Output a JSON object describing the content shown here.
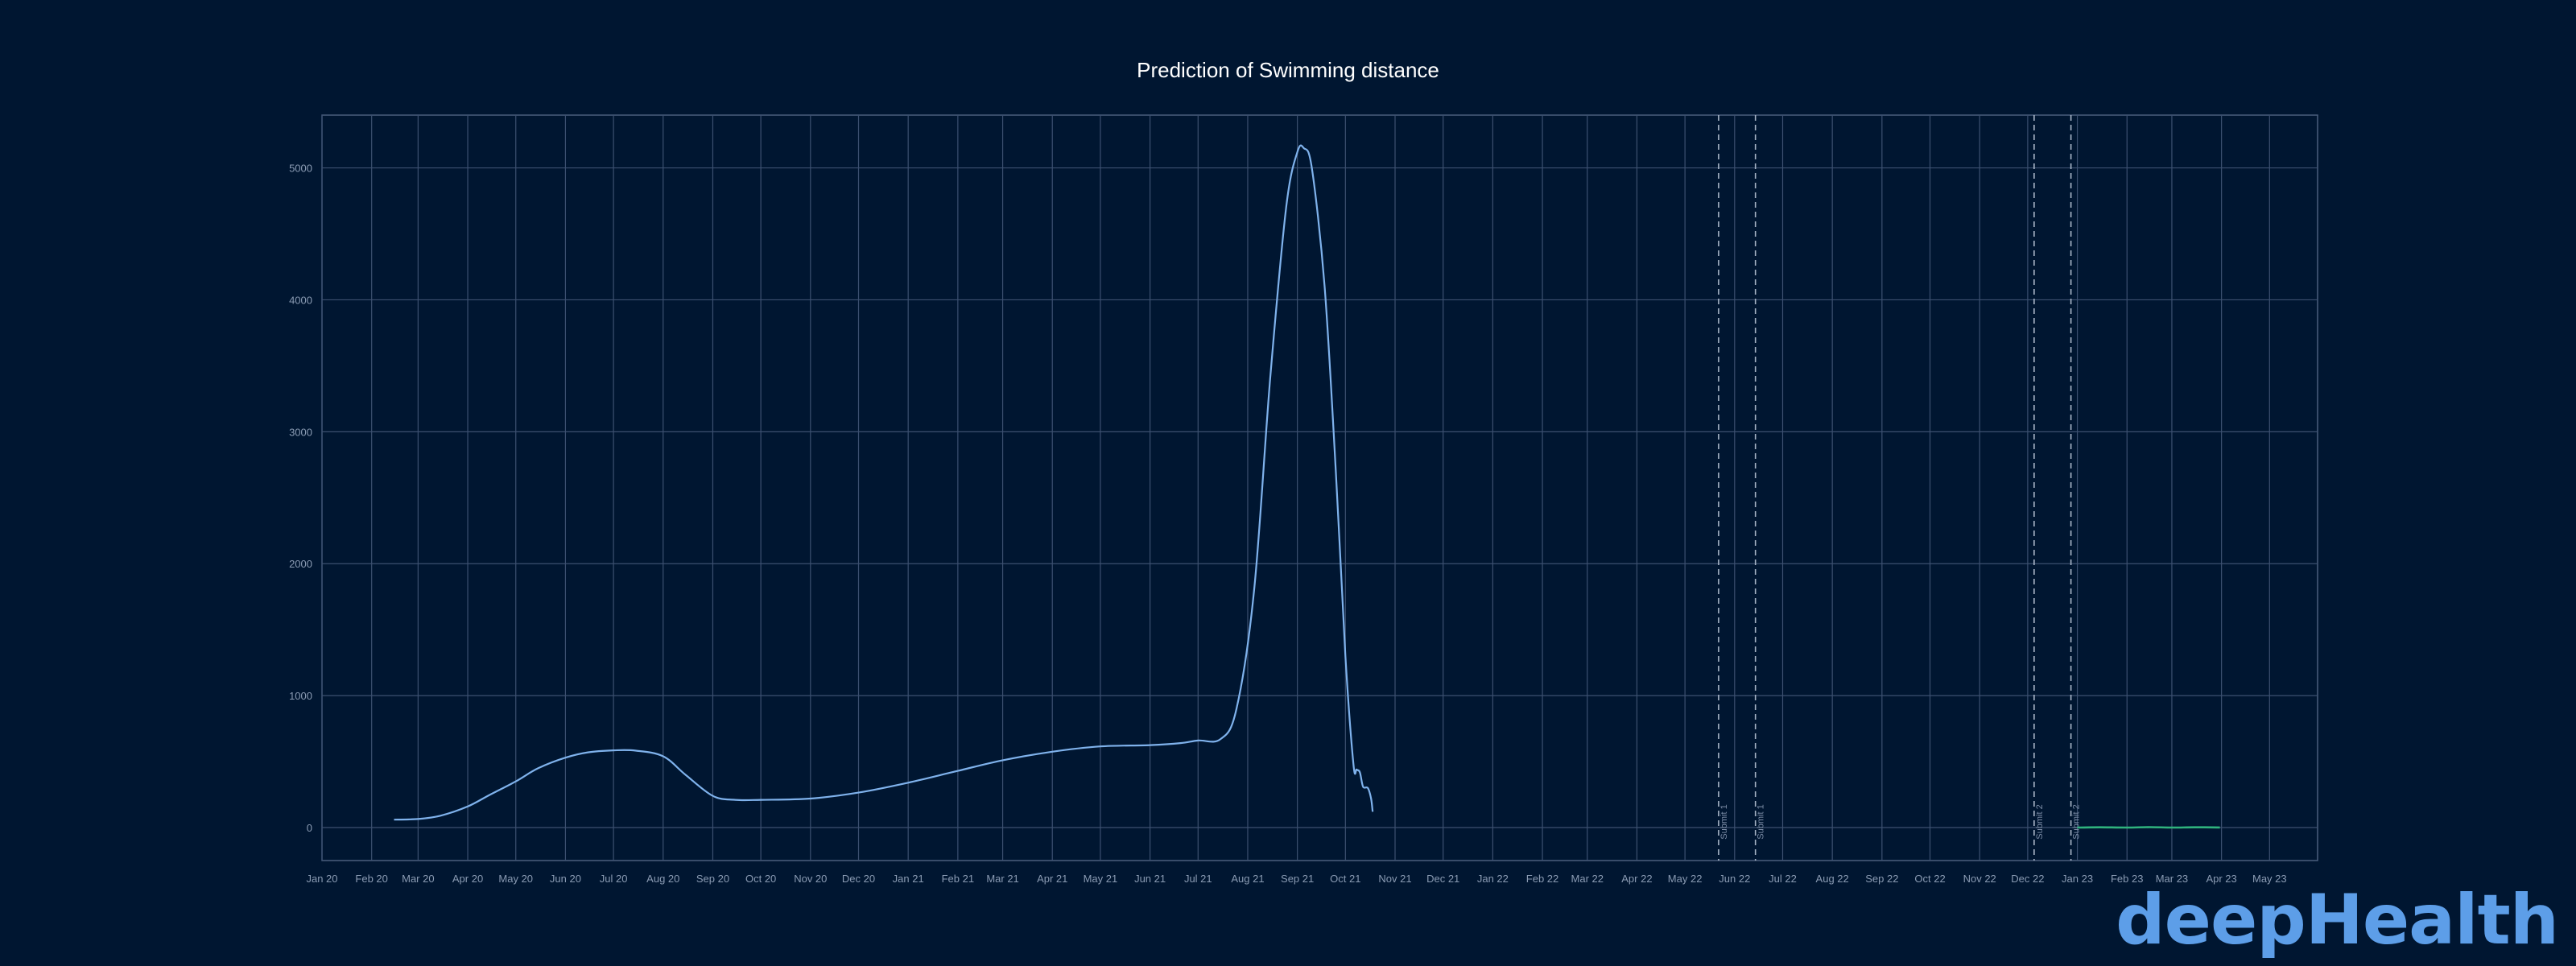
{
  "chart_data": {
    "type": "line",
    "title": "Prediction of Swimming distance",
    "xlabel": "",
    "ylabel": "",
    "x_axis": "date",
    "xlim": [
      "2020-01-01",
      "2023-05-31"
    ],
    "ylim": [
      -250,
      5400
    ],
    "grid": true,
    "x_tick_labels": [
      "Jan 20",
      "Feb 20",
      "Mar 20",
      "Apr 20",
      "May 20",
      "Jun 20",
      "Jul 20",
      "Aug 20",
      "Sep 20",
      "Oct 20",
      "Nov 20",
      "Dec 20",
      "Jan 21",
      "Feb 21",
      "Mar 21",
      "Apr 21",
      "May 21",
      "Jun 21",
      "Jul 21",
      "Aug 21",
      "Sep 21",
      "Oct 21",
      "Nov 21",
      "Dec 21",
      "Jan 22",
      "Feb 22",
      "Mar 22",
      "Apr 22",
      "May 22",
      "Jun 22",
      "Jul 22",
      "Aug 22",
      "Sep 22",
      "Oct 22",
      "Nov 22",
      "Dec 22",
      "Jan 23",
      "Feb 23",
      "Mar 23",
      "Apr 23",
      "May 23"
    ],
    "x_ticks": [
      "2020-01-01",
      "2020-02-01",
      "2020-03-01",
      "2020-04-01",
      "2020-05-01",
      "2020-06-01",
      "2020-07-01",
      "2020-08-01",
      "2020-09-01",
      "2020-10-01",
      "2020-11-01",
      "2020-12-01",
      "2021-01-01",
      "2021-02-01",
      "2021-03-01",
      "2021-04-01",
      "2021-05-01",
      "2021-06-01",
      "2021-07-01",
      "2021-08-01",
      "2021-09-01",
      "2021-10-01",
      "2021-11-01",
      "2021-12-01",
      "2022-01-01",
      "2022-02-01",
      "2022-03-01",
      "2022-04-01",
      "2022-05-01",
      "2022-06-01",
      "2022-07-01",
      "2022-08-01",
      "2022-09-01",
      "2022-10-01",
      "2022-11-01",
      "2022-12-01",
      "2023-01-01",
      "2023-02-01",
      "2023-03-01",
      "2023-04-01",
      "2023-05-01"
    ],
    "y_ticks": [
      0,
      1000,
      2000,
      3000,
      4000,
      5000
    ],
    "series": [
      {
        "color": "#7fb2ec",
        "points": [
          [
            "2020-02-15",
            60
          ],
          [
            "2020-03-01",
            65
          ],
          [
            "2020-03-15",
            90
          ],
          [
            "2020-04-01",
            160
          ],
          [
            "2020-04-15",
            250
          ],
          [
            "2020-05-01",
            350
          ],
          [
            "2020-05-15",
            450
          ],
          [
            "2020-06-01",
            530
          ],
          [
            "2020-06-15",
            570
          ],
          [
            "2020-07-01",
            585
          ],
          [
            "2020-07-15",
            583
          ],
          [
            "2020-08-01",
            540
          ],
          [
            "2020-08-15",
            400
          ],
          [
            "2020-09-01",
            240
          ],
          [
            "2020-09-15",
            210
          ],
          [
            "2020-10-01",
            210
          ],
          [
            "2020-11-01",
            220
          ],
          [
            "2020-12-01",
            265
          ],
          [
            "2021-01-01",
            340
          ],
          [
            "2021-02-01",
            430
          ],
          [
            "2021-03-01",
            510
          ],
          [
            "2021-04-01",
            575
          ],
          [
            "2021-05-01",
            615
          ],
          [
            "2021-06-01",
            625
          ],
          [
            "2021-06-20",
            640
          ],
          [
            "2021-07-01",
            660
          ],
          [
            "2021-07-15",
            670
          ],
          [
            "2021-07-25",
            900
          ],
          [
            "2021-08-05",
            1800
          ],
          [
            "2021-08-15",
            3400
          ],
          [
            "2021-08-25",
            4700
          ],
          [
            "2021-09-01",
            5120
          ],
          [
            "2021-09-05",
            5150
          ],
          [
            "2021-09-10",
            5000
          ],
          [
            "2021-09-18",
            4100
          ],
          [
            "2021-09-25",
            2700
          ],
          [
            "2021-10-01",
            1300
          ],
          [
            "2021-10-06",
            480
          ],
          [
            "2021-10-08",
            440
          ],
          [
            "2021-10-10",
            420
          ],
          [
            "2021-10-12",
            310
          ],
          [
            "2021-10-15",
            300
          ],
          [
            "2021-10-17",
            220
          ],
          [
            "2021-10-18",
            120
          ]
        ]
      },
      {
        "color": "#2fb37d",
        "points": [
          [
            "2023-01-01",
            0
          ],
          [
            "2023-01-15",
            2
          ],
          [
            "2023-02-01",
            0
          ],
          [
            "2023-02-15",
            3
          ],
          [
            "2023-03-01",
            0
          ],
          [
            "2023-03-15",
            2
          ],
          [
            "2023-03-31",
            1
          ]
        ]
      }
    ],
    "vertical_markers": [
      {
        "date": "2022-05-22",
        "label": "Submit 1"
      },
      {
        "date": "2022-06-14",
        "label": "Submit 1"
      },
      {
        "date": "2022-12-05",
        "label": "Submit 2"
      },
      {
        "date": "2022-12-28",
        "label": "Submit 2"
      }
    ]
  },
  "branding": {
    "logo_text": "deepHealth",
    "color": "#5d9ee8"
  }
}
